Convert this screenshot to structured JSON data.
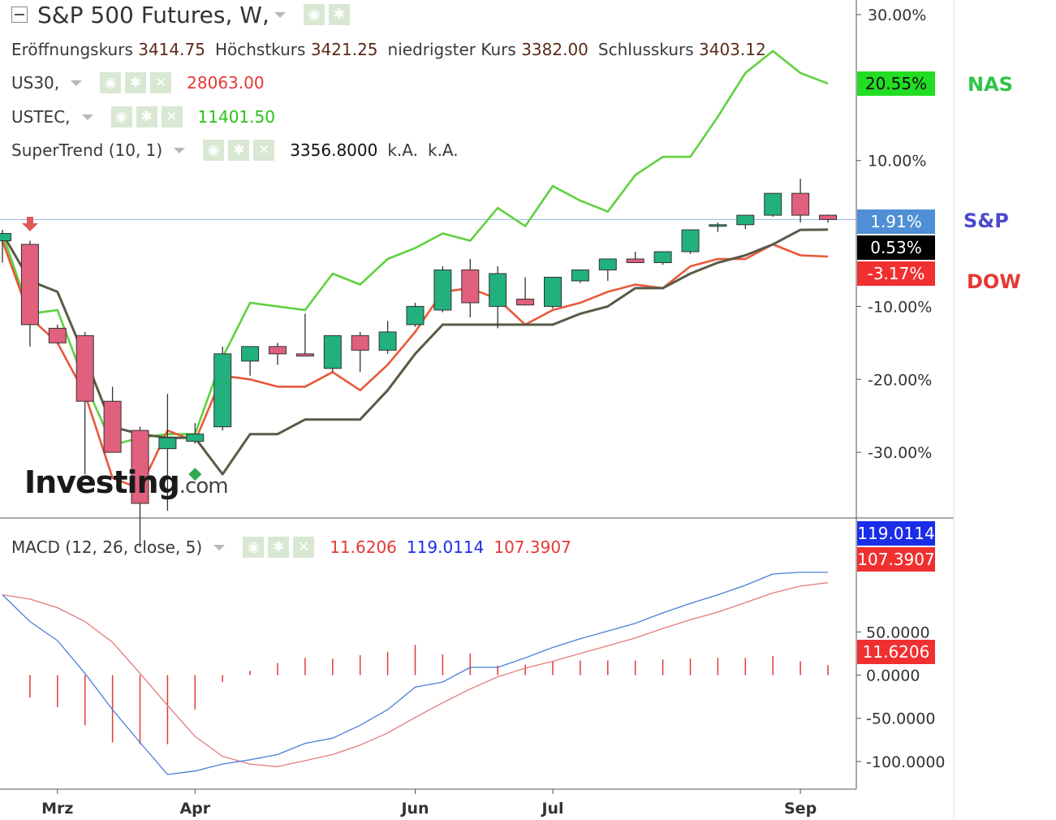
{
  "header": {
    "title": "S&P 500 Futures, W,",
    "ohlc": [
      {
        "label": "Eröffnungskurs",
        "value": "3414.75"
      },
      {
        "label": "Höchstkurs",
        "value": "3421.25"
      },
      {
        "label": "niedrigster Kurs",
        "value": "3382.00"
      },
      {
        "label": "Schlusskurs",
        "value": "3403.12"
      }
    ]
  },
  "legend": {
    "us30": {
      "label": "US30,",
      "value": "28063.00",
      "color": "#e53935"
    },
    "ustec": {
      "label": "USTEC,",
      "value": "11401.50",
      "color": "#28c314"
    },
    "supertrend": {
      "label": "SuperTrend (10, 1)",
      "value": "3356.8000",
      "na1": "k.A.",
      "na2": "k.A."
    },
    "macd": {
      "label": "MACD (12, 26, close, 5)",
      "hist": "11.6206",
      "macd": "119.0114",
      "signal": "107.3907"
    }
  },
  "icons": [
    "eye-icon",
    "gear-icon",
    "close-icon"
  ],
  "watermark": {
    "brand": "Investing",
    "suffix": ".com"
  },
  "price_tags": {
    "nas": {
      "text": "20.55%",
      "color": "#22dd22"
    },
    "sp": {
      "text": "1.91%",
      "color": "#4f8fd6"
    },
    "st": {
      "text": "0.53%",
      "color": "#000000"
    },
    "dow": {
      "text": "-3.17%",
      "color": "#f03030"
    },
    "macd": {
      "text": "119.0114",
      "color": "#1a2ee8"
    },
    "signal": {
      "text": "107.3907",
      "color": "#f03030"
    },
    "hist": {
      "text": "11.6206",
      "color": "#f03030"
    }
  },
  "side_labels": {
    "nas": {
      "text": "NAS",
      "color": "#2ec44a"
    },
    "sp": {
      "text": "S&P",
      "color": "#4a4ad0"
    },
    "dow": {
      "text": "DOW",
      "color": "#e53935"
    }
  },
  "colors": {
    "up": "#22b07d",
    "down": "#e0607e",
    "supertrend": "#5a5a48",
    "nas": "#5fd13f",
    "dow": "#e8583a",
    "macd": "#4a7fd8",
    "signal": "#e57a7a",
    "hist": "#e53935",
    "refline": "#8fb4e3"
  },
  "chart_data": [
    {
      "type": "candlestick",
      "title": "S&P 500 Futures, W,",
      "y_axis": {
        "label": "",
        "unit": "%",
        "ylim": [
          -39,
          32
        ],
        "ticks": [
          30,
          10,
          -10,
          -20,
          -30
        ],
        "tick_labels": [
          "30.00%",
          "10.00%",
          "-10.00%",
          "-20.00%",
          "-30.00%"
        ]
      },
      "x_axis": {
        "labels": [
          "Mrz",
          "Apr",
          "Jun",
          "Jul",
          "Sep"
        ],
        "label_index": [
          2,
          7,
          15,
          20,
          29
        ]
      },
      "candles": [
        {
          "o": -1.0,
          "h": 0.5,
          "l": -4.0,
          "c": 0.0
        },
        {
          "o": -1.5,
          "h": -1.0,
          "l": -15.5,
          "c": -12.5
        },
        {
          "o": -13.0,
          "h": -12.5,
          "l": -15.0,
          "c": -15.0
        },
        {
          "o": -14.0,
          "h": -13.5,
          "l": -33.0,
          "c": -23.0
        },
        {
          "o": -23.0,
          "h": -21.0,
          "l": -29.5,
          "c": -30.0
        },
        {
          "o": -27.0,
          "h": -26.5,
          "l": -43.0,
          "c": -37.0
        },
        {
          "o": -29.5,
          "h": -22.0,
          "l": -38.0,
          "c": -28.0
        },
        {
          "o": -28.5,
          "h": -26.0,
          "l": -28.8,
          "c": -27.5
        },
        {
          "o": -26.5,
          "h": -15.5,
          "l": -27.0,
          "c": -16.5
        },
        {
          "o": -17.5,
          "h": -15.5,
          "l": -19.5,
          "c": -15.5
        },
        {
          "o": -15.5,
          "h": -15.0,
          "l": -18.0,
          "c": -16.5
        },
        {
          "o": -16.5,
          "h": -11.0,
          "l": -16.8,
          "c": -16.8
        },
        {
          "o": -18.5,
          "h": -14.0,
          "l": -19.0,
          "c": -14.0
        },
        {
          "o": -14.0,
          "h": -13.5,
          "l": -19.0,
          "c": -16.0
        },
        {
          "o": -16.0,
          "h": -12.0,
          "l": -16.5,
          "c": -13.5
        },
        {
          "o": -12.5,
          "h": -9.5,
          "l": -12.8,
          "c": -10.0
        },
        {
          "o": -10.5,
          "h": -4.5,
          "l": -10.8,
          "c": -5.0
        },
        {
          "o": -5.0,
          "h": -3.5,
          "l": -11.5,
          "c": -9.5
        },
        {
          "o": -10.0,
          "h": -4.5,
          "l": -13.0,
          "c": -5.5
        },
        {
          "o": -9.0,
          "h": -6.0,
          "l": -9.9,
          "c": -9.8
        },
        {
          "o": -10.0,
          "h": -6.0,
          "l": -10.3,
          "c": -6.0
        },
        {
          "o": -6.5,
          "h": -5.0,
          "l": -6.8,
          "c": -5.0
        },
        {
          "o": -5.0,
          "h": -3.5,
          "l": -6.5,
          "c": -3.5
        },
        {
          "o": -3.5,
          "h": -2.5,
          "l": -3.9,
          "c": -4.0
        },
        {
          "o": -4.0,
          "h": -3.0,
          "l": -4.3,
          "c": -2.5
        },
        {
          "o": -2.5,
          "h": 0.5,
          "l": -2.8,
          "c": 0.5
        },
        {
          "o": 1.0,
          "h": 1.5,
          "l": 0.2,
          "c": 1.2
        },
        {
          "o": 1.2,
          "h": 1.8,
          "l": 0.6,
          "c": 2.5
        },
        {
          "o": 2.5,
          "h": 5.5,
          "l": 2.3,
          "c": 5.5
        },
        {
          "o": 5.5,
          "h": 7.5,
          "l": 1.5,
          "c": 2.5
        },
        {
          "o": 2.5,
          "h": 2.6,
          "l": 1.5,
          "c": 1.91
        }
      ],
      "series": [
        {
          "name": "US30",
          "values": [
            -1.0,
            -11.5,
            -15.0,
            -22.0,
            -33.5,
            -35.0,
            -27.0,
            -28.5,
            -19.5,
            -20.0,
            -21.0,
            -21.0,
            -19.0,
            -21.5,
            -18.0,
            -13.5,
            -8.0,
            -7.5,
            -9.0,
            -12.5,
            -10.5,
            -9.5,
            -8.0,
            -7.0,
            -7.5,
            -4.5,
            -3.5,
            -3.5,
            -1.5,
            -3.0,
            -3.17
          ]
        },
        {
          "name": "USTEC",
          "values": [
            0.0,
            -11.0,
            -10.5,
            -20.5,
            -29.0,
            -28.0,
            -27.5,
            -27.5,
            -17.0,
            -9.5,
            -10.0,
            -10.5,
            -5.5,
            -7.0,
            -3.5,
            -2.0,
            0.0,
            -1.0,
            3.5,
            1.0,
            6.5,
            4.5,
            3.0,
            8.0,
            10.5,
            10.5,
            16.0,
            22.0,
            25.0,
            22.0,
            20.55
          ]
        },
        {
          "name": "SuperTrend (10, 1)",
          "values": [
            0.0,
            -6.5,
            -8.0,
            -17.0,
            -26.5,
            -27.5,
            -28.0,
            -28.0,
            -33.0,
            -27.5,
            -27.5,
            -25.5,
            -25.5,
            -25.5,
            -21.5,
            -16.5,
            -12.5,
            -12.5,
            -12.5,
            -12.5,
            -12.5,
            -11.0,
            -10.0,
            -7.5,
            -7.5,
            -5.5,
            -4.0,
            -3.0,
            -1.5,
            0.5,
            0.53
          ]
        }
      ]
    },
    {
      "type": "line",
      "title": "MACD (12, 26, close, 5)",
      "y_axis": {
        "label": "",
        "ylim": [
          -132,
          180
        ],
        "ticks": [
          50,
          0,
          -50,
          -100
        ],
        "tick_labels": [
          "50.0000",
          "0.0000",
          "-50.0000",
          "-100.0000"
        ]
      },
      "x_axis": {
        "labels": [
          "Mrz",
          "Apr",
          "Jun",
          "Jul",
          "Sep"
        ],
        "label_index": [
          2,
          7,
          15,
          20,
          29
        ]
      },
      "series": [
        {
          "name": "MACD",
          "values": [
            93,
            62,
            40,
            2,
            -40,
            -78,
            -115,
            -111,
            -103,
            -98,
            -92,
            -79,
            -73,
            -58,
            -40,
            -14,
            -8,
            9,
            9,
            20,
            32,
            42,
            51,
            60,
            72,
            83,
            93,
            104,
            117,
            119,
            119
          ]
        },
        {
          "name": "Signal",
          "values": [
            93,
            88,
            78,
            62,
            38,
            2,
            -35,
            -71,
            -94,
            -103,
            -106,
            -99,
            -92,
            -81,
            -67,
            -49,
            -32,
            -16,
            -2,
            8,
            16,
            25,
            34,
            43,
            54,
            64,
            73,
            84,
            95,
            103,
            107
          ]
        },
        {
          "name": "Histogram",
          "values": [
            0,
            -26,
            -37,
            -58,
            -78,
            -80,
            -80,
            -40,
            -8,
            5,
            14,
            20,
            19,
            23,
            27,
            35,
            24,
            25,
            11,
            12,
            16,
            17,
            17,
            17,
            18,
            19,
            20,
            20,
            22,
            16,
            11.6206
          ]
        }
      ]
    }
  ]
}
